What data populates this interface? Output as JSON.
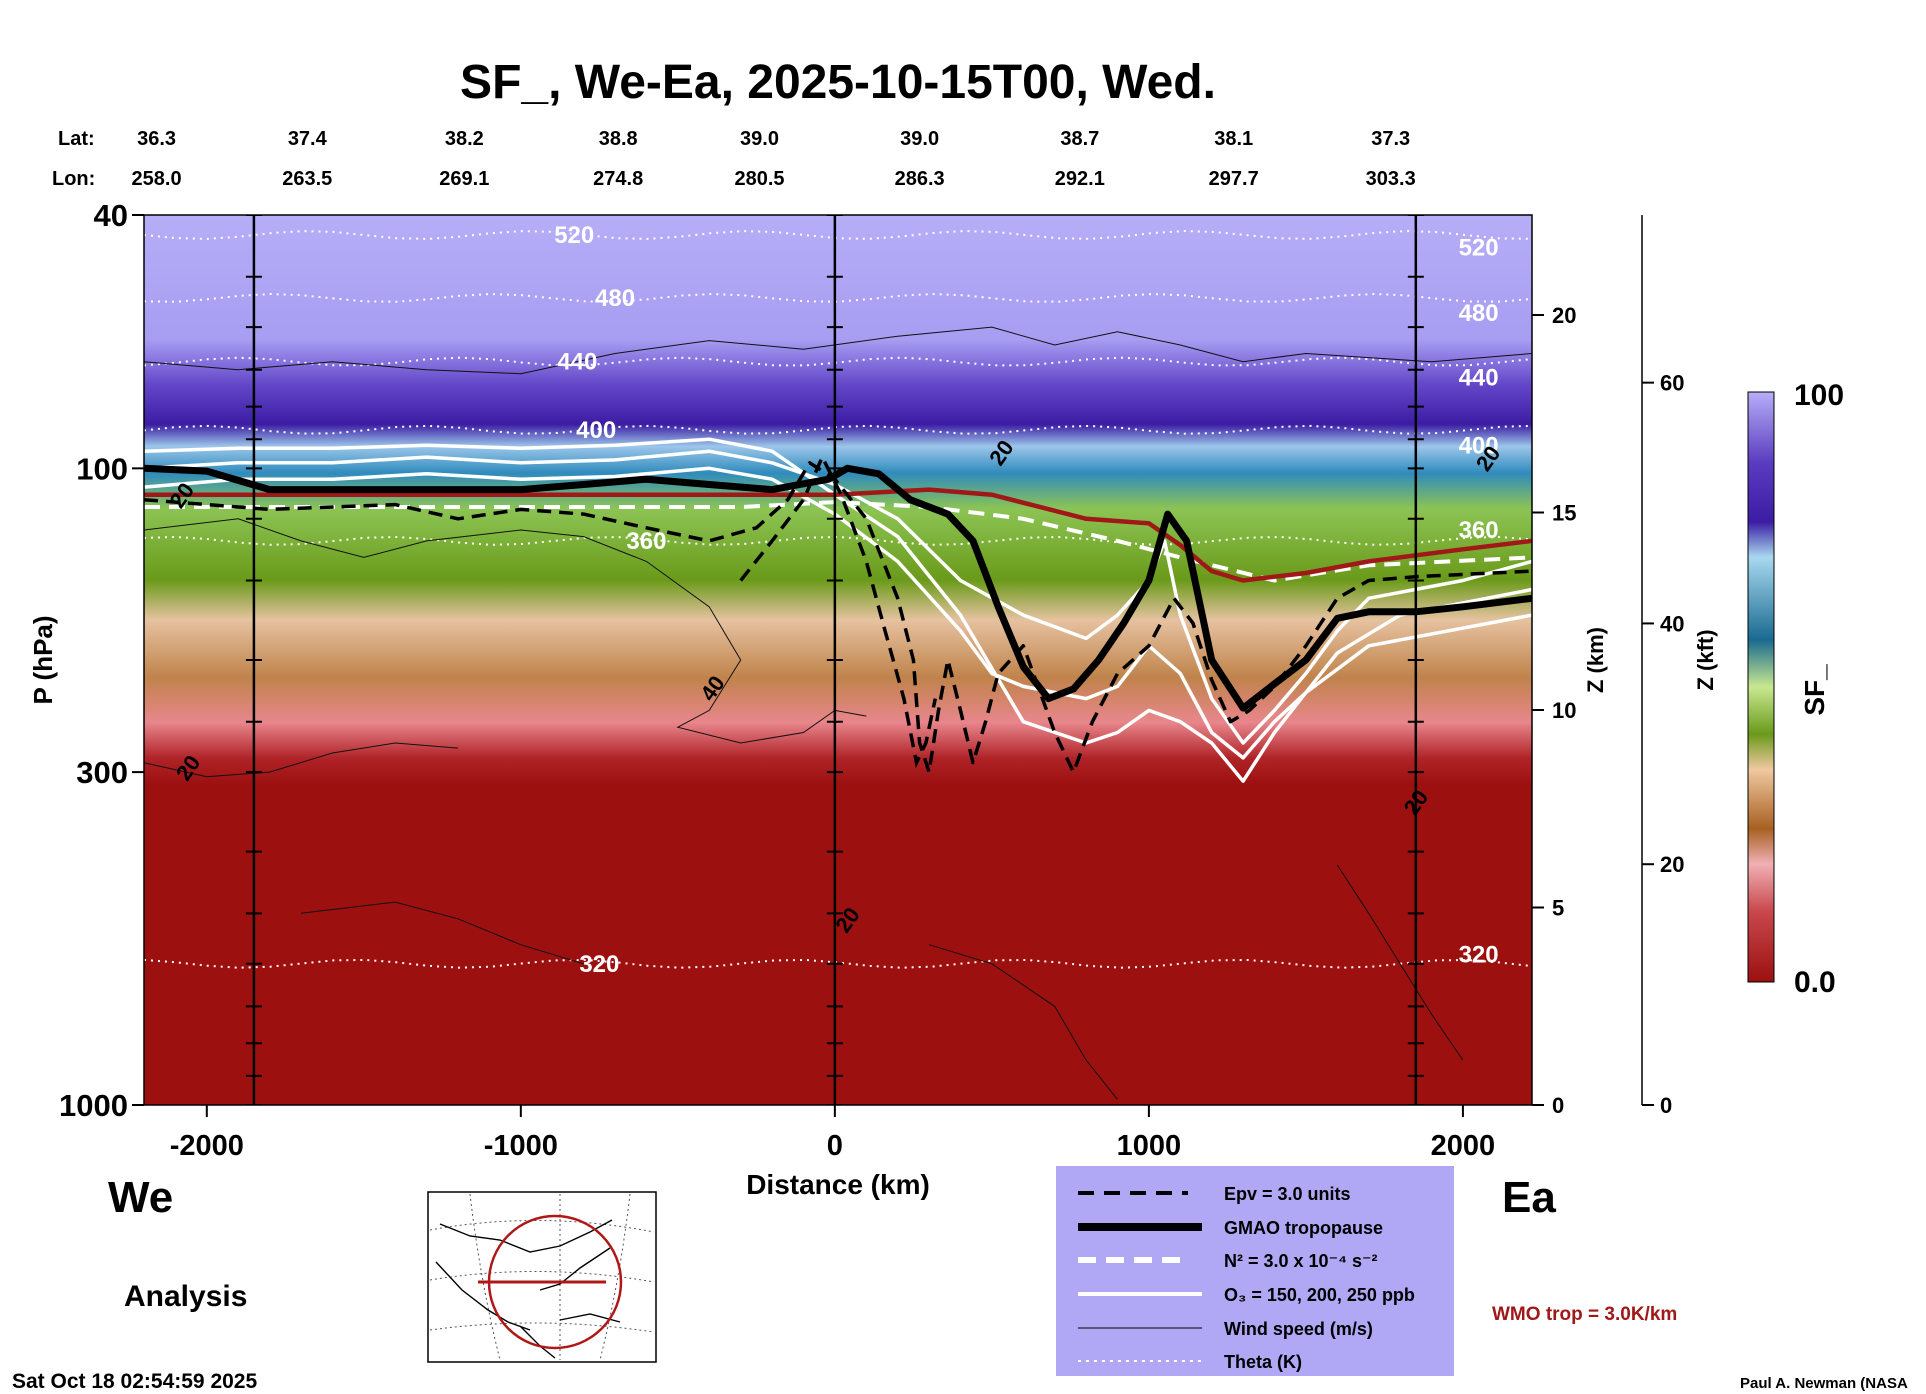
{
  "chart_data": {
    "type": "heatmap",
    "title": "SF_, We-Ea, 2025-10-15T00, Wed.",
    "xlabel": "Distance (km)",
    "ylabel": "P (hPa)",
    "xlim": [
      -2200,
      2220
    ],
    "ylim": [
      1000,
      40
    ],
    "y_scale": "log",
    "x_ticks": [
      -2000,
      -1000,
      0,
      1000,
      2000
    ],
    "y_ticks": [
      40,
      100,
      300,
      1000
    ],
    "z_km_ticks": [
      0,
      5,
      10,
      15,
      20
    ],
    "z_kft_ticks": [
      0,
      20,
      40,
      60
    ],
    "lat_label": "Lat:",
    "lon_label": "Lon:",
    "lat": [
      "36.3",
      "37.4",
      "38.2",
      "38.8",
      "39.0",
      "39.0",
      "38.7",
      "38.1",
      "37.3"
    ],
    "lon": [
      "258.0",
      "263.5",
      "269.1",
      "274.8",
      "280.5",
      "286.3",
      "292.1",
      "297.7",
      "303.3"
    ],
    "lat_lon_x": [
      -2160,
      -1680,
      -1180,
      -690,
      -240,
      270,
      780,
      1270,
      1770
    ],
    "vertical_lines_x": [
      -1850,
      0,
      1850
    ],
    "colorbar": {
      "label": "SF_",
      "min_label": "0.0",
      "max_label": "100"
    },
    "secondary_axes": {
      "z_km_label": "Z (km)",
      "z_kft_label": "Z (kft)"
    },
    "theta_levels": [
      {
        "label": "520",
        "p": 43,
        "label_x": -830
      },
      {
        "label": "480",
        "p": 54,
        "label_x": -700
      },
      {
        "label": "440",
        "p": 68,
        "label_x": -820
      },
      {
        "label": "400",
        "p": 87,
        "label_x": -760
      },
      {
        "label": "360",
        "p": 130,
        "label_x": -600
      },
      {
        "label": "320",
        "p": 600,
        "label_x": -750
      }
    ],
    "theta_right_labels": [
      {
        "label": "520",
        "p": 45
      },
      {
        "label": "480",
        "p": 57
      },
      {
        "label": "440",
        "p": 72
      },
      {
        "label": "400",
        "p": 92
      },
      {
        "label": "360",
        "p": 125
      },
      {
        "label": "320",
        "p": 580
      }
    ],
    "wind_labels": [
      {
        "label": "20",
        "x": -2060,
        "p": 112
      },
      {
        "label": "20",
        "x": -2040,
        "p": 300
      },
      {
        "label": "40",
        "x": -370,
        "p": 225
      },
      {
        "label": "20",
        "x": 550,
        "p": 96
      },
      {
        "label": "20",
        "x": 60,
        "p": 520
      },
      {
        "label": "20",
        "x": 1870,
        "p": 340
      },
      {
        "label": "20",
        "x": 2100,
        "p": 98
      }
    ],
    "gmao_tropopause": [
      [
        -2200,
        100
      ],
      [
        -2000,
        101
      ],
      [
        -1800,
        108
      ],
      [
        -1400,
        108
      ],
      [
        -1000,
        108
      ],
      [
        -800,
        106
      ],
      [
        -600,
        104
      ],
      [
        -400,
        106
      ],
      [
        -200,
        108
      ],
      [
        -20,
        104
      ],
      [
        40,
        100
      ],
      [
        140,
        102
      ],
      [
        240,
        112
      ],
      [
        360,
        118
      ],
      [
        440,
        130
      ],
      [
        520,
        165
      ],
      [
        600,
        205
      ],
      [
        680,
        230
      ],
      [
        760,
        222
      ],
      [
        840,
        200
      ],
      [
        920,
        175
      ],
      [
        1000,
        150
      ],
      [
        1060,
        118
      ],
      [
        1120,
        130
      ],
      [
        1200,
        200
      ],
      [
        1300,
        238
      ],
      [
        1400,
        218
      ],
      [
        1500,
        200
      ],
      [
        1600,
        172
      ],
      [
        1700,
        168
      ],
      [
        1850,
        168
      ],
      [
        2000,
        165
      ],
      [
        2220,
        160
      ]
    ],
    "wmo_tropopause": [
      [
        -2200,
        110
      ],
      [
        -1500,
        110
      ],
      [
        -800,
        110
      ],
      [
        -200,
        110
      ],
      [
        0,
        110
      ],
      [
        300,
        108
      ],
      [
        500,
        110
      ],
      [
        800,
        120
      ],
      [
        1000,
        122
      ],
      [
        1100,
        132
      ],
      [
        1200,
        145
      ],
      [
        1300,
        150
      ],
      [
        1500,
        146
      ],
      [
        1700,
        140
      ],
      [
        2000,
        134
      ],
      [
        2220,
        130
      ]
    ],
    "n2_line": [
      [
        -2200,
        115
      ],
      [
        -1000,
        115
      ],
      [
        -300,
        115
      ],
      [
        0,
        113
      ],
      [
        300,
        115
      ],
      [
        600,
        120
      ],
      [
        900,
        130
      ],
      [
        1100,
        138
      ],
      [
        1400,
        150
      ],
      [
        1700,
        142
      ],
      [
        2220,
        138
      ]
    ],
    "o3_lines": [
      [
        [
          -2200,
          100
        ],
        [
          -1900,
          98
        ],
        [
          -1600,
          98
        ],
        [
          -1300,
          96
        ],
        [
          -1000,
          98
        ],
        [
          -700,
          97
        ],
        [
          -400,
          94
        ],
        [
          -200,
          98
        ],
        [
          0,
          106
        ],
        [
          200,
          120
        ],
        [
          400,
          150
        ],
        [
          600,
          170
        ],
        [
          800,
          185
        ],
        [
          900,
          170
        ],
        [
          1000,
          150
        ],
        [
          1050,
          130
        ],
        [
          1100,
          170
        ],
        [
          1200,
          230
        ],
        [
          1300,
          270
        ],
        [
          1400,
          240
        ],
        [
          1500,
          210
        ],
        [
          1600,
          180
        ],
        [
          1700,
          160
        ],
        [
          2000,
          150
        ],
        [
          2220,
          140
        ]
      ],
      [
        [
          -2200,
          107
        ],
        [
          -1900,
          104
        ],
        [
          -1600,
          104
        ],
        [
          -1300,
          102
        ],
        [
          -1000,
          104
        ],
        [
          -700,
          103
        ],
        [
          -400,
          100
        ],
        [
          -200,
          104
        ],
        [
          0,
          118
        ],
        [
          200,
          140
        ],
        [
          400,
          180
        ],
        [
          500,
          210
        ],
        [
          600,
          220
        ],
        [
          800,
          230
        ],
        [
          900,
          220
        ],
        [
          1000,
          190
        ],
        [
          1100,
          210
        ],
        [
          1200,
          260
        ],
        [
          1300,
          285
        ],
        [
          1400,
          250
        ],
        [
          1500,
          225
        ],
        [
          1600,
          195
        ],
        [
          1800,
          170
        ],
        [
          2220,
          155
        ]
      ],
      [
        [
          -2200,
          94
        ],
        [
          -1900,
          93
        ],
        [
          -1600,
          93
        ],
        [
          -1300,
          92
        ],
        [
          -1000,
          93
        ],
        [
          -700,
          92
        ],
        [
          -400,
          90
        ],
        [
          -200,
          94
        ],
        [
          0,
          110
        ],
        [
          200,
          128
        ],
        [
          400,
          170
        ],
        [
          600,
          250
        ],
        [
          800,
          270
        ],
        [
          900,
          260
        ],
        [
          1000,
          240
        ],
        [
          1100,
          250
        ],
        [
          1200,
          270
        ],
        [
          1300,
          310
        ],
        [
          1400,
          260
        ],
        [
          1500,
          225
        ],
        [
          1700,
          190
        ],
        [
          2220,
          170
        ]
      ]
    ],
    "epv_line": [
      [
        -2200,
        112
      ],
      [
        -1800,
        116
      ],
      [
        -1400,
        114
      ],
      [
        -1200,
        120
      ],
      [
        -1000,
        116
      ],
      [
        -800,
        118
      ],
      [
        -600,
        124
      ],
      [
        -400,
        130
      ],
      [
        -250,
        124
      ],
      [
        -150,
        112
      ],
      [
        -80,
        98
      ],
      [
        0,
        104
      ],
      [
        100,
        120
      ],
      [
        200,
        160
      ],
      [
        250,
        200
      ],
      [
        270,
        270
      ],
      [
        300,
        300
      ],
      [
        330,
        240
      ],
      [
        360,
        200
      ],
      [
        400,
        240
      ],
      [
        440,
        290
      ],
      [
        480,
        250
      ],
      [
        520,
        210
      ],
      [
        600,
        190
      ],
      [
        700,
        260
      ],
      [
        760,
        300
      ],
      [
        820,
        250
      ],
      [
        900,
        210
      ],
      [
        1000,
        190
      ],
      [
        1080,
        160
      ],
      [
        1140,
        175
      ],
      [
        1200,
        215
      ],
      [
        1260,
        250
      ],
      [
        1320,
        240
      ],
      [
        1400,
        220
      ],
      [
        1500,
        190
      ],
      [
        1600,
        160
      ],
      [
        1700,
        150
      ],
      [
        1850,
        148
      ],
      [
        2220,
        145
      ]
    ],
    "epv_line2": [
      [
        -300,
        150
      ],
      [
        -200,
        130
      ],
      [
        -100,
        112
      ],
      [
        -40,
        96
      ],
      [
        20,
        110
      ],
      [
        100,
        140
      ],
      [
        160,
        180
      ],
      [
        220,
        230
      ],
      [
        260,
        290
      ],
      [
        290,
        270
      ],
      [
        320,
        230
      ]
    ],
    "wind_contours": [
      [
        [
          -2200,
          68
        ],
        [
          -1900,
          70
        ],
        [
          -1600,
          68
        ],
        [
          -1300,
          70
        ],
        [
          -1000,
          71
        ],
        [
          -700,
          66
        ],
        [
          -400,
          63
        ],
        [
          -100,
          65
        ],
        [
          200,
          62
        ],
        [
          500,
          60
        ],
        [
          700,
          64
        ],
        [
          900,
          61
        ],
        [
          1100,
          64
        ],
        [
          1300,
          68
        ],
        [
          1500,
          66
        ],
        [
          1700,
          67
        ],
        [
          1900,
          68
        ],
        [
          2220,
          66
        ]
      ],
      [
        [
          -2200,
          125
        ],
        [
          -1900,
          120
        ],
        [
          -1700,
          130
        ],
        [
          -1500,
          138
        ],
        [
          -1300,
          130
        ],
        [
          -1000,
          125
        ],
        [
          -800,
          128
        ],
        [
          -600,
          140
        ],
        [
          -400,
          165
        ],
        [
          -300,
          200
        ],
        [
          -400,
          240
        ],
        [
          -500,
          255
        ],
        [
          -300,
          270
        ],
        [
          -100,
          260
        ],
        [
          0,
          240
        ],
        [
          100,
          245
        ]
      ],
      [
        [
          -2200,
          290
        ],
        [
          -2000,
          305
        ],
        [
          -1800,
          300
        ],
        [
          -1600,
          280
        ],
        [
          -1400,
          270
        ],
        [
          -1200,
          275
        ]
      ],
      [
        [
          -1700,
          500
        ],
        [
          -1400,
          480
        ],
        [
          -1200,
          510
        ],
        [
          -1000,
          560
        ],
        [
          -800,
          600
        ]
      ],
      [
        [
          300,
          560
        ],
        [
          500,
          600
        ],
        [
          700,
          700
        ],
        [
          800,
          850
        ],
        [
          900,
          980
        ]
      ],
      [
        [
          1600,
          420
        ],
        [
          1700,
          500
        ],
        [
          1800,
          600
        ],
        [
          1900,
          720
        ],
        [
          2000,
          850
        ]
      ]
    ],
    "legend": {
      "items": [
        {
          "label": "Epv = 3.0 units",
          "style": "dashed-black"
        },
        {
          "label": "GMAO tropopause",
          "style": "thick-black"
        },
        {
          "label": "N² = 3.0 x 10⁻⁴ s⁻²",
          "style": "dashed-white"
        },
        {
          "label": "O₃ = 150, 200, 250 ppb",
          "style": "solid-white"
        },
        {
          "label": "Wind speed (m/s)",
          "style": "thin-black"
        },
        {
          "label": "Theta (K)",
          "style": "dotted-white"
        }
      ],
      "background": "#b0a8f4",
      "wmo_label": "WMO trop = 3.0K/km",
      "wmo_color": "#a01818"
    }
  },
  "annotations": {
    "west_label": "We",
    "east_label": "Ea",
    "analysis_label": "Analysis",
    "timestamp": "Sat Oct 18 02:54:59 2025",
    "credit": "Paul A. Newman (NASA"
  },
  "colors": {
    "purple_light": "#b4acf6",
    "purple_dark": "#3b1ca3",
    "blue": "#2f8bbd",
    "green": "#6a9a1a",
    "tan": "#d69a5f",
    "pink": "#e8868c",
    "red": "#9c1010",
    "wmo_red": "#a01818"
  }
}
